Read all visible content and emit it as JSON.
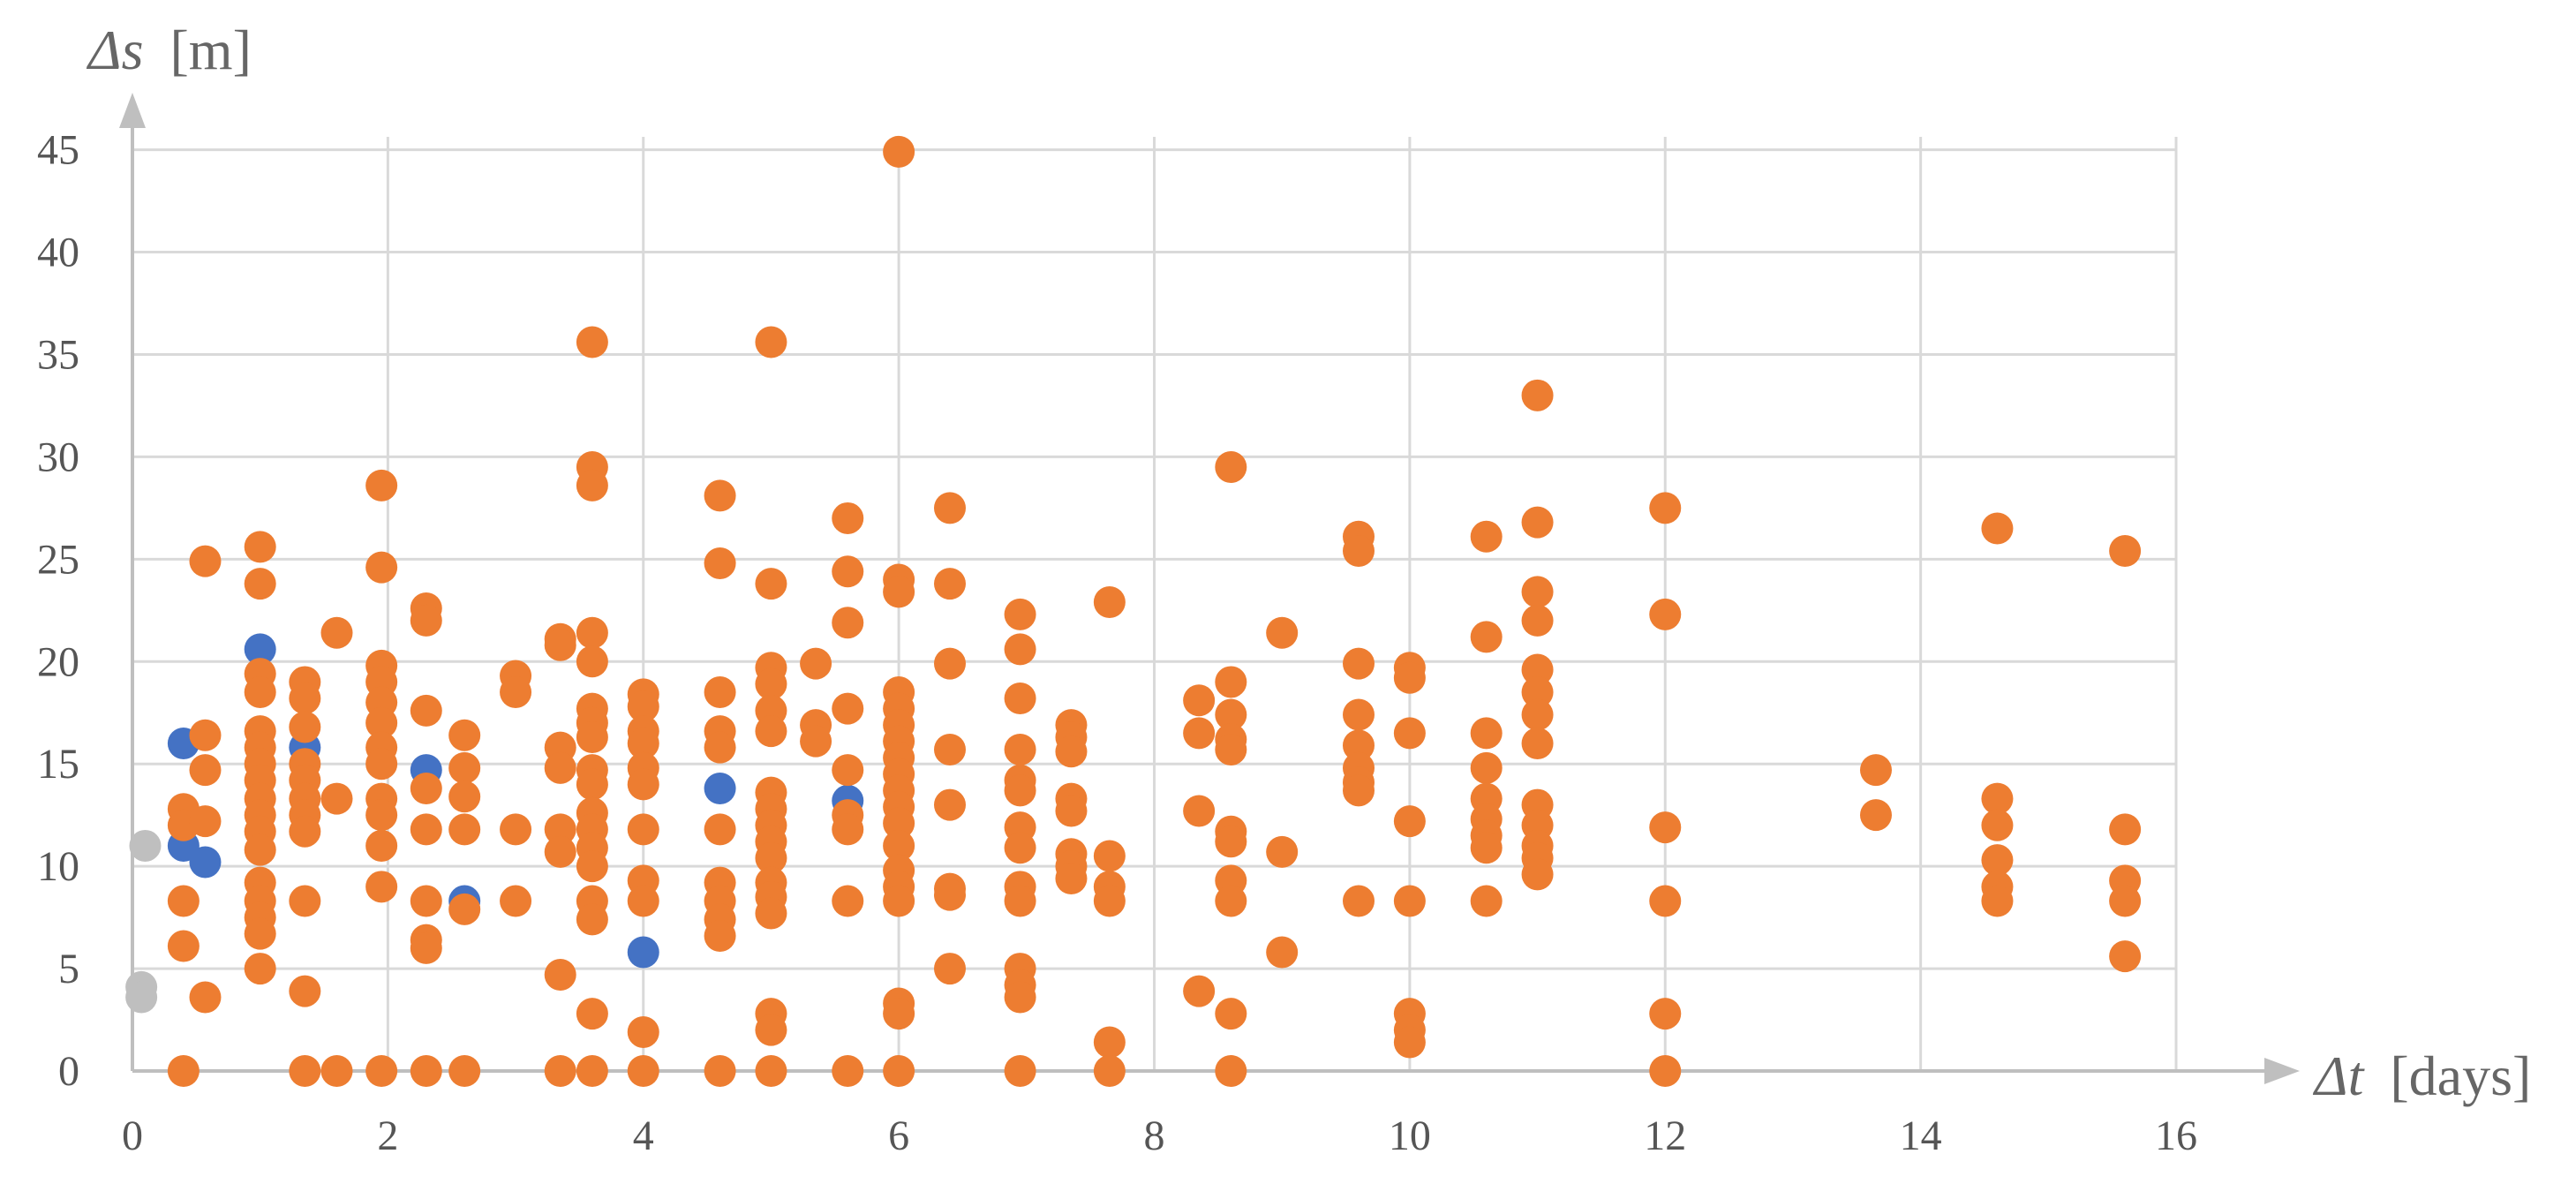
{
  "chart_data": {
    "type": "scatter",
    "title": "",
    "xlabel_symbol": "Δt",
    "xlabel_unit": "[days]",
    "ylabel_symbol": "Δs",
    "ylabel_unit": "[m]",
    "xlim": [
      0,
      16
    ],
    "ylim": [
      0,
      48
    ],
    "x_ticks": [
      0,
      2,
      4,
      6,
      8,
      10,
      12,
      14,
      16
    ],
    "y_ticks": [
      0,
      5,
      10,
      15,
      20,
      25,
      30,
      35,
      40,
      45
    ],
    "grid": true,
    "legend": "none",
    "series": [
      {
        "color": "#bfbfbf",
        "points": [
          [
            0.1,
            11.0
          ],
          [
            0.07,
            4.1
          ],
          [
            0.07,
            3.6
          ]
        ]
      },
      {
        "color": "#4472c4",
        "points": [
          [
            0.4,
            16.0
          ],
          [
            0.4,
            11.0
          ],
          [
            0.57,
            10.2
          ],
          [
            1.0,
            20.6
          ],
          [
            1.35,
            15.8
          ],
          [
            2.3,
            14.7
          ],
          [
            2.6,
            8.3
          ],
          [
            4.6,
            13.8
          ],
          [
            5.6,
            13.2
          ],
          [
            4.0,
            5.8
          ]
        ]
      },
      {
        "color": "#ed7d31",
        "points": [
          [
            0.4,
            12.8
          ],
          [
            0.4,
            12.0
          ],
          [
            0.4,
            8.3
          ],
          [
            0.4,
            6.1
          ],
          [
            0.4,
            0
          ],
          [
            0.57,
            24.9
          ],
          [
            0.57,
            16.4
          ],
          [
            0.57,
            14.7
          ],
          [
            0.57,
            12.2
          ],
          [
            0.57,
            3.6
          ],
          [
            1.0,
            25.6
          ],
          [
            1.0,
            23.8
          ],
          [
            1.0,
            19.4
          ],
          [
            1.0,
            18.5
          ],
          [
            1.0,
            16.6
          ],
          [
            1.0,
            15.8
          ],
          [
            1.0,
            15.0
          ],
          [
            1.0,
            14.2
          ],
          [
            1.0,
            13.3
          ],
          [
            1.0,
            12.5
          ],
          [
            1.0,
            11.7
          ],
          [
            1.0,
            10.8
          ],
          [
            1.0,
            9.2
          ],
          [
            1.0,
            8.3
          ],
          [
            1.0,
            7.5
          ],
          [
            1.0,
            6.7
          ],
          [
            1.0,
            5.0
          ],
          [
            1.35,
            19.0
          ],
          [
            1.35,
            18.2
          ],
          [
            1.35,
            16.8
          ],
          [
            1.35,
            15.0
          ],
          [
            1.35,
            14.2
          ],
          [
            1.35,
            13.3
          ],
          [
            1.35,
            12.5
          ],
          [
            1.35,
            11.7
          ],
          [
            1.35,
            8.3
          ],
          [
            1.35,
            3.9
          ],
          [
            1.35,
            0
          ],
          [
            1.6,
            21.4
          ],
          [
            1.6,
            13.3
          ],
          [
            1.6,
            0
          ],
          [
            1.95,
            28.6
          ],
          [
            1.95,
            24.6
          ],
          [
            1.95,
            19.8
          ],
          [
            1.95,
            19.0
          ],
          [
            1.95,
            18.0
          ],
          [
            1.95,
            17.0
          ],
          [
            1.95,
            15.8
          ],
          [
            1.95,
            15.0
          ],
          [
            1.95,
            13.3
          ],
          [
            1.95,
            12.5
          ],
          [
            1.95,
            11.0
          ],
          [
            1.95,
            9.0
          ],
          [
            1.95,
            0
          ],
          [
            2.3,
            22.6
          ],
          [
            2.3,
            22.0
          ],
          [
            2.3,
            17.6
          ],
          [
            2.3,
            13.8
          ],
          [
            2.3,
            11.8
          ],
          [
            2.3,
            8.3
          ],
          [
            2.3,
            6.4
          ],
          [
            2.3,
            6.0
          ],
          [
            2.3,
            0
          ],
          [
            2.6,
            16.4
          ],
          [
            2.6,
            14.8
          ],
          [
            2.6,
            13.4
          ],
          [
            2.6,
            11.8
          ],
          [
            2.6,
            7.9
          ],
          [
            2.6,
            0
          ],
          [
            3.0,
            19.3
          ],
          [
            3.0,
            18.5
          ],
          [
            3.0,
            11.8
          ],
          [
            3.0,
            8.3
          ],
          [
            3.35,
            21.1
          ],
          [
            3.35,
            20.8
          ],
          [
            3.35,
            15.8
          ],
          [
            3.35,
            14.8
          ],
          [
            3.35,
            11.8
          ],
          [
            3.35,
            10.7
          ],
          [
            3.35,
            4.7
          ],
          [
            3.35,
            0
          ],
          [
            3.6,
            35.6
          ],
          [
            3.6,
            29.5
          ],
          [
            3.6,
            28.6
          ],
          [
            3.6,
            21.4
          ],
          [
            3.6,
            20.0
          ],
          [
            3.6,
            17.7
          ],
          [
            3.6,
            17.0
          ],
          [
            3.6,
            16.3
          ],
          [
            3.6,
            14.7
          ],
          [
            3.6,
            14.0
          ],
          [
            3.6,
            12.6
          ],
          [
            3.6,
            11.8
          ],
          [
            3.6,
            10.9
          ],
          [
            3.6,
            10.0
          ],
          [
            3.6,
            8.3
          ],
          [
            3.6,
            7.4
          ],
          [
            3.6,
            2.8
          ],
          [
            3.6,
            0
          ],
          [
            4.0,
            18.4
          ],
          [
            4.0,
            17.8
          ],
          [
            4.0,
            16.6
          ],
          [
            4.0,
            16.0
          ],
          [
            4.0,
            14.8
          ],
          [
            4.0,
            14.0
          ],
          [
            4.0,
            11.8
          ],
          [
            4.0,
            9.3
          ],
          [
            4.0,
            8.3
          ],
          [
            4.0,
            1.9
          ],
          [
            4.0,
            0
          ],
          [
            4.6,
            28.1
          ],
          [
            4.6,
            24.8
          ],
          [
            4.6,
            18.5
          ],
          [
            4.6,
            16.6
          ],
          [
            4.6,
            15.8
          ],
          [
            4.6,
            11.8
          ],
          [
            4.6,
            9.2
          ],
          [
            4.6,
            8.3
          ],
          [
            4.6,
            7.4
          ],
          [
            4.6,
            6.6
          ],
          [
            4.6,
            0
          ],
          [
            5.0,
            35.6
          ],
          [
            5.0,
            23.8
          ],
          [
            5.0,
            19.7
          ],
          [
            5.0,
            18.9
          ],
          [
            5.0,
            17.6
          ],
          [
            5.0,
            16.6
          ],
          [
            5.0,
            13.6
          ],
          [
            5.0,
            12.8
          ],
          [
            5.0,
            12.0
          ],
          [
            5.0,
            11.2
          ],
          [
            5.0,
            10.4
          ],
          [
            5.0,
            9.2
          ],
          [
            5.0,
            8.5
          ],
          [
            5.0,
            7.7
          ],
          [
            5.0,
            2.8
          ],
          [
            5.0,
            2.0
          ],
          [
            5.0,
            0
          ],
          [
            5.35,
            19.9
          ],
          [
            5.35,
            16.9
          ],
          [
            5.35,
            16.1
          ],
          [
            5.6,
            27.0
          ],
          [
            5.6,
            24.4
          ],
          [
            5.6,
            21.9
          ],
          [
            5.6,
            17.7
          ],
          [
            5.6,
            14.7
          ],
          [
            5.6,
            12.5
          ],
          [
            5.6,
            11.8
          ],
          [
            5.6,
            8.3
          ],
          [
            5.6,
            0
          ],
          [
            6.0,
            44.9
          ],
          [
            6.0,
            24.0
          ],
          [
            6.0,
            23.4
          ],
          [
            6.0,
            18.5
          ],
          [
            6.0,
            17.7
          ],
          [
            6.0,
            16.9
          ],
          [
            6.0,
            16.1
          ],
          [
            6.0,
            15.3
          ],
          [
            6.0,
            14.5
          ],
          [
            6.0,
            13.7
          ],
          [
            6.0,
            12.9
          ],
          [
            6.0,
            12.1
          ],
          [
            6.0,
            11.0
          ],
          [
            6.0,
            9.8
          ],
          [
            6.0,
            9.0
          ],
          [
            6.0,
            8.3
          ],
          [
            6.0,
            3.3
          ],
          [
            6.0,
            2.8
          ],
          [
            6.0,
            0
          ],
          [
            6.4,
            27.5
          ],
          [
            6.4,
            23.8
          ],
          [
            6.4,
            19.9
          ],
          [
            6.4,
            15.7
          ],
          [
            6.4,
            13.0
          ],
          [
            6.4,
            8.9
          ],
          [
            6.4,
            8.6
          ],
          [
            6.4,
            5.0
          ],
          [
            6.95,
            22.3
          ],
          [
            6.95,
            20.6
          ],
          [
            6.95,
            18.2
          ],
          [
            6.95,
            15.7
          ],
          [
            6.95,
            14.2
          ],
          [
            6.95,
            13.7
          ],
          [
            6.95,
            11.9
          ],
          [
            6.95,
            10.9
          ],
          [
            6.95,
            9.0
          ],
          [
            6.95,
            8.3
          ],
          [
            6.95,
            5.0
          ],
          [
            6.95,
            4.2
          ],
          [
            6.95,
            3.6
          ],
          [
            6.95,
            0
          ],
          [
            7.35,
            16.9
          ],
          [
            7.35,
            16.3
          ],
          [
            7.35,
            15.6
          ],
          [
            7.35,
            13.3
          ],
          [
            7.35,
            12.7
          ],
          [
            7.35,
            10.6
          ],
          [
            7.35,
            10.0
          ],
          [
            7.35,
            9.4
          ],
          [
            7.65,
            22.9
          ],
          [
            7.65,
            10.5
          ],
          [
            7.65,
            9.0
          ],
          [
            7.65,
            8.3
          ],
          [
            7.65,
            1.4
          ],
          [
            7.65,
            0
          ],
          [
            8.35,
            18.1
          ],
          [
            8.35,
            16.5
          ],
          [
            8.35,
            12.7
          ],
          [
            8.35,
            3.9
          ],
          [
            8.6,
            29.5
          ],
          [
            8.6,
            19.0
          ],
          [
            8.6,
            17.4
          ],
          [
            8.6,
            16.2
          ],
          [
            8.6,
            15.7
          ],
          [
            8.6,
            11.7
          ],
          [
            8.6,
            11.2
          ],
          [
            8.6,
            9.3
          ],
          [
            8.6,
            8.3
          ],
          [
            8.6,
            2.8
          ],
          [
            8.6,
            0
          ],
          [
            9.0,
            21.4
          ],
          [
            9.0,
            10.7
          ],
          [
            9.0,
            5.8
          ],
          [
            9.6,
            26.1
          ],
          [
            9.6,
            25.4
          ],
          [
            9.6,
            19.9
          ],
          [
            9.6,
            17.4
          ],
          [
            9.6,
            15.9
          ],
          [
            9.6,
            14.8
          ],
          [
            9.6,
            14.1
          ],
          [
            9.6,
            13.7
          ],
          [
            9.6,
            8.3
          ],
          [
            10.0,
            19.7
          ],
          [
            10.0,
            19.2
          ],
          [
            10.0,
            16.5
          ],
          [
            10.0,
            12.2
          ],
          [
            10.0,
            8.3
          ],
          [
            10.0,
            2.8
          ],
          [
            10.0,
            2.0
          ],
          [
            10.0,
            1.4
          ],
          [
            10.6,
            26.1
          ],
          [
            10.6,
            21.2
          ],
          [
            10.6,
            16.5
          ],
          [
            10.6,
            14.8
          ],
          [
            10.6,
            13.3
          ],
          [
            10.6,
            12.3
          ],
          [
            10.6,
            11.5
          ],
          [
            10.6,
            10.9
          ],
          [
            10.6,
            8.3
          ],
          [
            11.0,
            33.0
          ],
          [
            11.0,
            26.8
          ],
          [
            11.0,
            23.4
          ],
          [
            11.0,
            22.0
          ],
          [
            11.0,
            19.6
          ],
          [
            11.0,
            18.5
          ],
          [
            11.0,
            17.4
          ],
          [
            11.0,
            16.0
          ],
          [
            11.0,
            13.0
          ],
          [
            11.0,
            12.0
          ],
          [
            11.0,
            11.0
          ],
          [
            11.0,
            10.4
          ],
          [
            11.0,
            9.6
          ],
          [
            12.0,
            27.5
          ],
          [
            12.0,
            22.3
          ],
          [
            12.0,
            11.9
          ],
          [
            12.0,
            8.3
          ],
          [
            12.0,
            2.8
          ],
          [
            12.0,
            0
          ],
          [
            13.65,
            14.7
          ],
          [
            13.65,
            12.5
          ],
          [
            14.6,
            26.5
          ],
          [
            14.6,
            13.3
          ],
          [
            14.6,
            12.0
          ],
          [
            14.6,
            10.3
          ],
          [
            14.6,
            9.0
          ],
          [
            14.6,
            8.3
          ],
          [
            15.6,
            25.4
          ],
          [
            15.6,
            11.8
          ],
          [
            15.6,
            9.3
          ],
          [
            15.6,
            8.3
          ],
          [
            15.6,
            5.6
          ]
        ]
      }
    ]
  }
}
